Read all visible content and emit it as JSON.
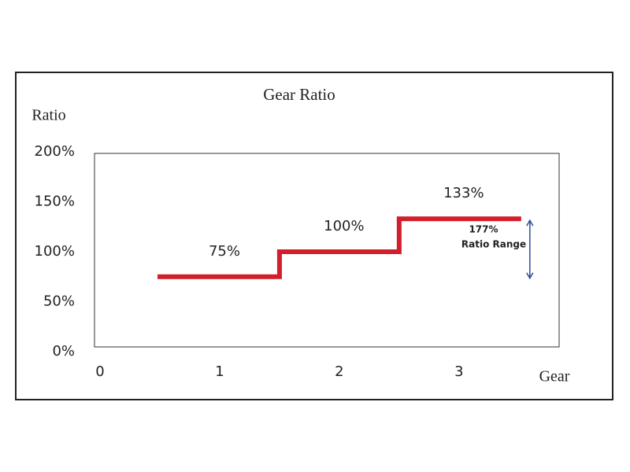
{
  "chart_data": {
    "type": "step",
    "title": "Gear Ratio",
    "y_label": "Ratio",
    "x_label": "Gear",
    "x": [
      1,
      2,
      3
    ],
    "values": [
      75,
      100,
      133
    ],
    "value_labels": [
      "75%",
      "100%",
      "133%"
    ],
    "color": "#d21f2b",
    "xlim": [
      0,
      3.85
    ],
    "xticks": [
      0,
      1,
      2,
      3
    ],
    "ylim": [
      0,
      200
    ],
    "yticks": [
      {
        "value": 0,
        "label": "0%"
      },
      {
        "value": 50,
        "label": "50%"
      },
      {
        "value": 100,
        "label": "100%"
      },
      {
        "value": 150,
        "label": "150%"
      },
      {
        "value": 200,
        "label": "200%"
      }
    ],
    "annotations": [
      {
        "text": "177%"
      },
      {
        "text": "Ratio Range"
      }
    ],
    "arrow_color": "#2a4d9a"
  }
}
